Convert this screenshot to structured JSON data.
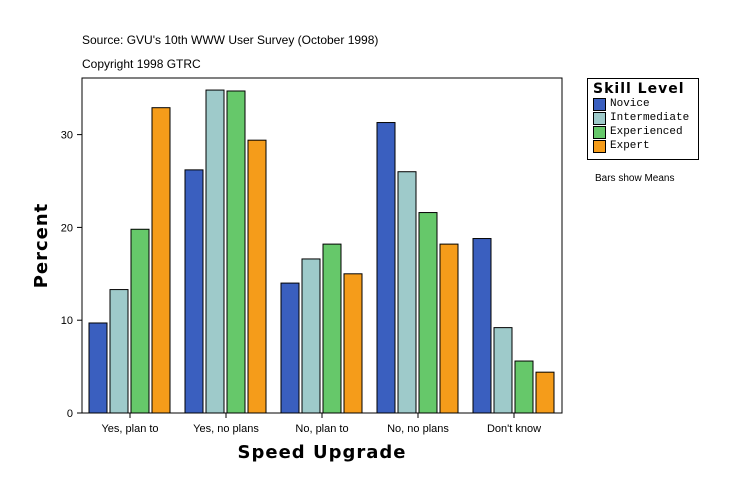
{
  "chart_data": {
    "type": "bar",
    "subtitle_lines": [
      "Source: GVU's 10th WWW User Survey (October 1998)",
      "Copyright 1998 GTRC"
    ],
    "xlabel": "Speed Upgrade",
    "ylabel": "Percent",
    "categories": [
      "Yes, plan to",
      "Yes, no plans",
      "No, plan to",
      "No, no plans",
      "Don't know"
    ],
    "ylim": [
      0,
      36.1
    ],
    "yticks": [
      0,
      10,
      20,
      30
    ],
    "legend_title": "Skill Level",
    "legend_placement": "right",
    "note": "Bars show Means",
    "series": [
      {
        "name": "Novice",
        "color": "#3a5fbf",
        "values": [
          9.7,
          26.2,
          14.0,
          31.3,
          18.8
        ]
      },
      {
        "name": "Intermediate",
        "color": "#9ecaca",
        "values": [
          13.3,
          34.8,
          16.6,
          26.0,
          9.2
        ]
      },
      {
        "name": "Experienced",
        "color": "#66c86a",
        "values": [
          19.8,
          34.7,
          18.2,
          21.6,
          5.6
        ]
      },
      {
        "name": "Expert",
        "color": "#f59c1a",
        "values": [
          32.9,
          29.4,
          15.0,
          18.2,
          4.4
        ]
      }
    ]
  }
}
